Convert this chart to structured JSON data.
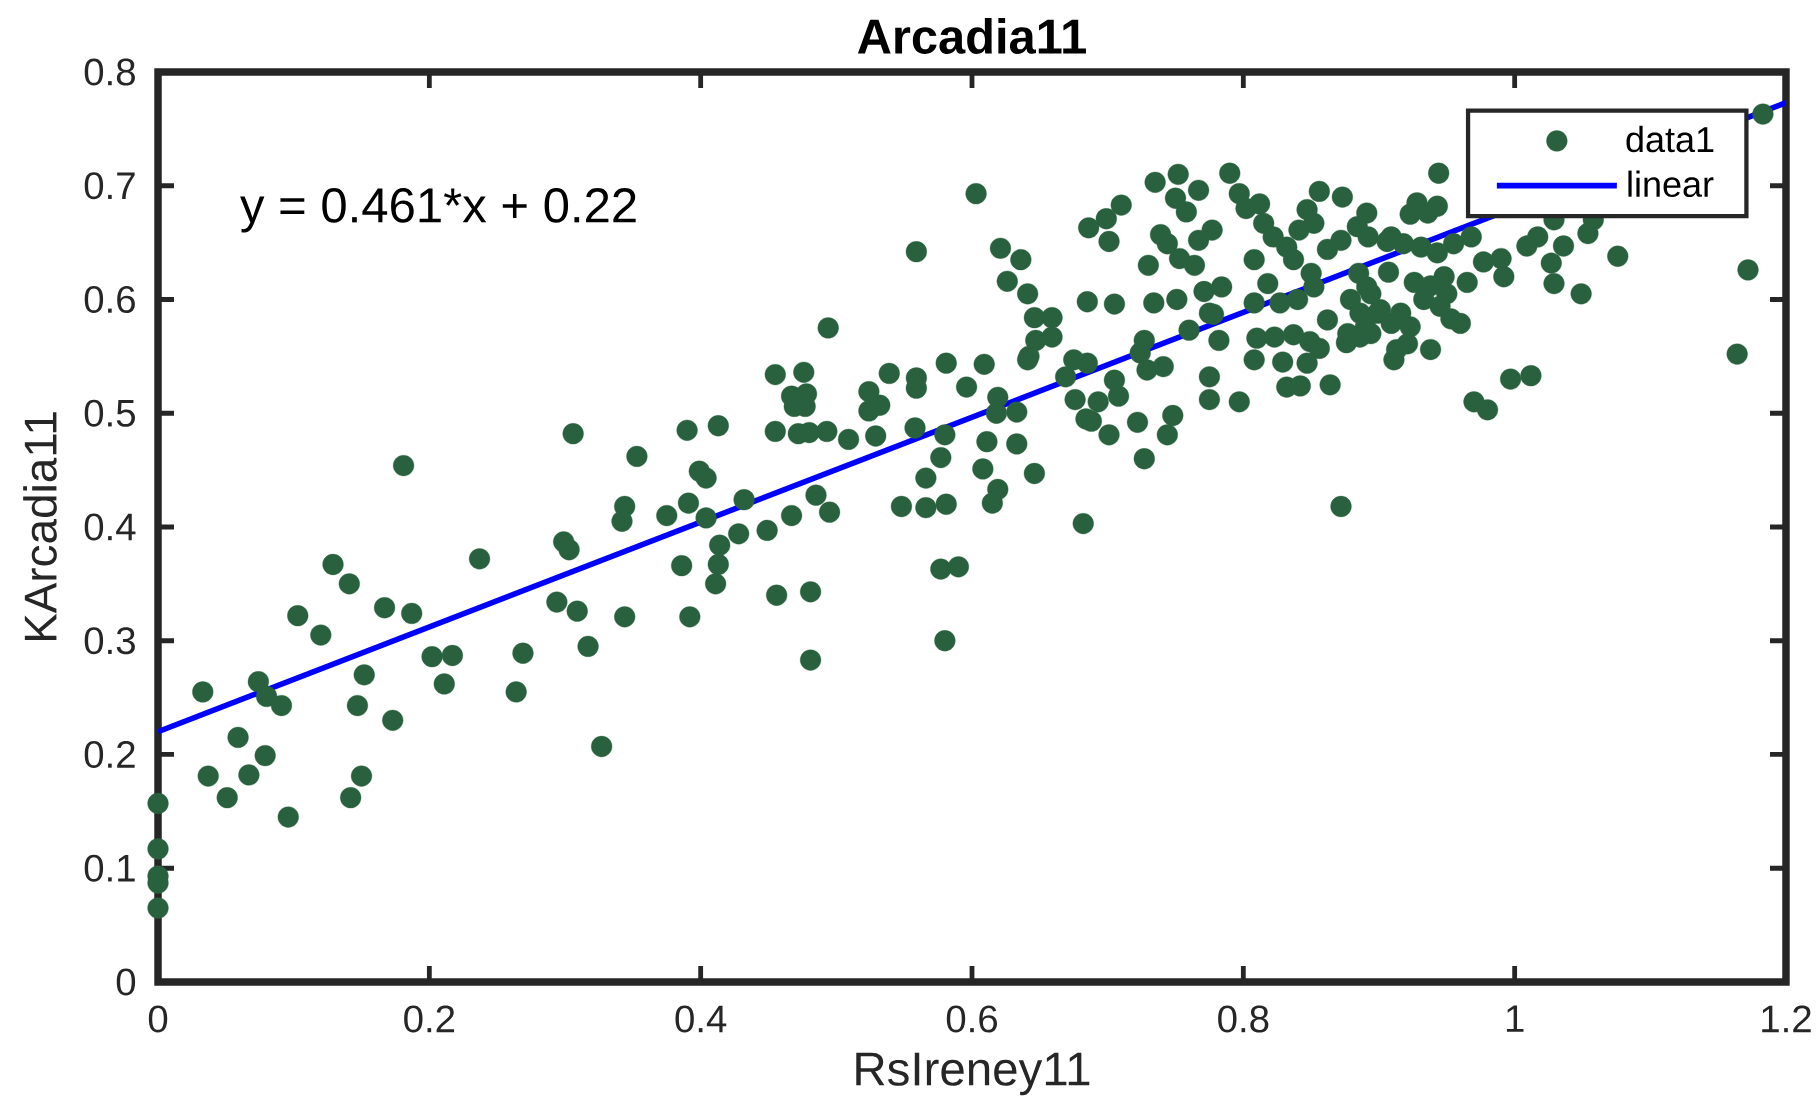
{
  "chart_data": {
    "type": "scatter",
    "title": "Arcadia11",
    "xlabel": "RsIreney11",
    "ylabel": "KArcadia11",
    "xlim": [
      0,
      1.2
    ],
    "ylim": [
      0,
      0.8
    ],
    "xticks": [
      0,
      0.2,
      0.4,
      0.6,
      0.8,
      1,
      1.2
    ],
    "yticks": [
      0,
      0.1,
      0.2,
      0.3,
      0.4,
      0.5,
      0.6,
      0.7,
      0.8
    ],
    "legend": "top right",
    "annotations": [
      "y = 0.461*x + 0.22"
    ],
    "series": [
      {
        "name": "data1",
        "color": "#29613f",
        "marker": "circle",
        "x": [
          0,
          0,
          0,
          0,
          0,
          0.033,
          0.037,
          0.051,
          0.059,
          0.067,
          0.074,
          0.08,
          0.079,
          0.091,
          0.096,
          0.103,
          0.12,
          0.129,
          0.141,
          0.152,
          0.147,
          0.142,
          0.15,
          0.173,
          0.167,
          0.187,
          0.181,
          0.202,
          0.217,
          0.211,
          0.237,
          0.264,
          0.269,
          0.294,
          0.299,
          0.303,
          0.309,
          0.317,
          0.327,
          0.306,
          0.353,
          0.344,
          0.342,
          0.344,
          0.375,
          0.391,
          0.386,
          0.392,
          0.399,
          0.39,
          0.413,
          0.404,
          0.404,
          0.414,
          0.413,
          0.411,
          0.428,
          0.432,
          0.449,
          0.456,
          0.481,
          0.481,
          0.467,
          0.485,
          0.495,
          0.455,
          0.476,
          0.467,
          0.478,
          0.469,
          0.477,
          0.455,
          0.472,
          0.48,
          0.493,
          0.509,
          0.529,
          0.524,
          0.524,
          0.532,
          0.539,
          0.559,
          0.559,
          0.558,
          0.581,
          0.596,
          0.609,
          0.58,
          0.577,
          0.566,
          0.548,
          0.566,
          0.581,
          0.577,
          0.59,
          0.58,
          0.611,
          0.608,
          0.619,
          0.615,
          0.619,
          0.618,
          0.633,
          0.633,
          0.646,
          0.682,
          0.641,
          0.669,
          0.676,
          0.693,
          0.684,
          0.688,
          0.701,
          0.675,
          0.685,
          0.705,
          0.708,
          0.603,
          0.559,
          0.494,
          0.735,
          0.752,
          0.767,
          0.75,
          0.758,
          0.79,
          0.71,
          0.699,
          0.686,
          0.701,
          0.73,
          0.739,
          0.744,
          0.753,
          0.764,
          0.767,
          0.777,
          0.797,
          0.802,
          0.812,
          0.636,
          0.626,
          0.641,
          0.621,
          0.685,
          0.705,
          0.734,
          0.751,
          0.771,
          0.784,
          0.778,
          0.646,
          0.659,
          0.647,
          0.659,
          0.642,
          0.727,
          0.724,
          0.729,
          0.741,
          0.76,
          0.775,
          0.782,
          0.775,
          0.775,
          0.797,
          0.748,
          0.722,
          0.744,
          0.727,
          0.808,
          0.818,
          0.827,
          0.808,
          0.815,
          0.822,
          0.832,
          0.841,
          0.847,
          0.856,
          0.873,
          0.852,
          0.837,
          0.85,
          0.862,
          0.872,
          0.84,
          0.852,
          0.81,
          0.823,
          0.837,
          0.849,
          0.856,
          0.876,
          0.808,
          0.829,
          0.847,
          0.832,
          0.842,
          0.864,
          0.862,
          0.879,
          0.886,
          0.894,
          0.877,
          0.89,
          0.901,
          0.909,
          0.911,
          0.884,
          0.892,
          0.909,
          0.885,
          0.907,
          0.872,
          0.944,
          0.928,
          0.936,
          0.923,
          0.943,
          0.891,
          0.906,
          0.918,
          0.931,
          0.943,
          0.955,
          0.968,
          0.926,
          0.938,
          0.948,
          0.965,
          0.977,
          0.99,
          0.992,
          1.009,
          1.017,
          1.029,
          1.036,
          0.891,
          0.899,
          0.894,
          0.886,
          0.916,
          0.923,
          0.921,
          0.913,
          0.938,
          0.933,
          0.95,
          0.953,
          0.96,
          0.945,
          1.027,
          1.029,
          1.049,
          1.054,
          1.058,
          1.076,
          0.997,
          1.012,
          0.97,
          0.98,
          1.172,
          1.164,
          1.183
        ],
        "values": [
          0.157,
          0.117,
          0.093,
          0.087,
          0.065,
          0.255,
          0.181,
          0.162,
          0.215,
          0.182,
          0.264,
          0.251,
          0.199,
          0.243,
          0.145,
          0.322,
          0.305,
          0.367,
          0.35,
          0.27,
          0.243,
          0.162,
          0.181,
          0.23,
          0.329,
          0.324,
          0.454,
          0.286,
          0.287,
          0.262,
          0.372,
          0.255,
          0.289,
          0.334,
          0.387,
          0.38,
          0.326,
          0.295,
          0.207,
          0.482,
          0.462,
          0.418,
          0.405,
          0.321,
          0.41,
          0.421,
          0.366,
          0.321,
          0.449,
          0.485,
          0.489,
          0.443,
          0.408,
          0.384,
          0.367,
          0.35,
          0.394,
          0.424,
          0.397,
          0.34,
          0.343,
          0.283,
          0.41,
          0.428,
          0.413,
          0.534,
          0.536,
          0.515,
          0.517,
          0.506,
          0.506,
          0.484,
          0.482,
          0.483,
          0.484,
          0.477,
          0.48,
          0.519,
          0.502,
          0.507,
          0.535,
          0.531,
          0.522,
          0.487,
          0.544,
          0.523,
          0.543,
          0.481,
          0.461,
          0.443,
          0.418,
          0.417,
          0.42,
          0.363,
          0.365,
          0.3,
          0.475,
          0.451,
          0.433,
          0.421,
          0.514,
          0.5,
          0.501,
          0.473,
          0.447,
          0.403,
          0.547,
          0.532,
          0.512,
          0.51,
          0.495,
          0.493,
          0.481,
          0.547,
          0.544,
          0.529,
          0.515,
          0.693,
          0.642,
          0.575,
          0.703,
          0.71,
          0.696,
          0.689,
          0.677,
          0.711,
          0.683,
          0.671,
          0.663,
          0.651,
          0.63,
          0.657,
          0.649,
          0.636,
          0.63,
          0.652,
          0.661,
          0.693,
          0.68,
          0.684,
          0.635,
          0.616,
          0.605,
          0.645,
          0.598,
          0.596,
          0.597,
          0.6,
          0.607,
          0.611,
          0.587,
          0.584,
          0.584,
          0.564,
          0.567,
          0.55,
          0.564,
          0.553,
          0.538,
          0.541,
          0.573,
          0.588,
          0.564,
          0.532,
          0.512,
          0.51,
          0.498,
          0.492,
          0.481,
          0.46,
          0.635,
          0.614,
          0.597,
          0.597,
          0.667,
          0.655,
          0.646,
          0.661,
          0.679,
          0.695,
          0.69,
          0.667,
          0.635,
          0.623,
          0.644,
          0.652,
          0.6,
          0.611,
          0.566,
          0.567,
          0.569,
          0.563,
          0.557,
          0.562,
          0.547,
          0.545,
          0.544,
          0.523,
          0.524,
          0.525,
          0.582,
          0.6,
          0.588,
          0.605,
          0.57,
          0.576,
          0.591,
          0.579,
          0.547,
          0.664,
          0.655,
          0.655,
          0.623,
          0.624,
          0.418,
          0.711,
          0.685,
          0.676,
          0.675,
          0.682,
          0.676,
          0.651,
          0.649,
          0.646,
          0.641,
          0.649,
          0.655,
          0.615,
          0.612,
          0.62,
          0.615,
          0.633,
          0.636,
          0.62,
          0.647,
          0.655,
          0.67,
          0.647,
          0.611,
          0.588,
          0.57,
          0.567,
          0.588,
          0.576,
          0.561,
          0.556,
          0.556,
          0.6,
          0.605,
          0.583,
          0.579,
          0.594,
          0.632,
          0.614,
          0.605,
          0.658,
          0.67,
          0.638,
          0.53,
          0.533,
          0.51,
          0.503,
          0.626,
          0.552,
          0.763
        ]
      },
      {
        "name": "linear",
        "type": "line",
        "color": "#0000ff",
        "line_style": "solid",
        "x": [
          0,
          1.2
        ],
        "values": [
          0.22,
          0.773
        ]
      }
    ]
  }
}
